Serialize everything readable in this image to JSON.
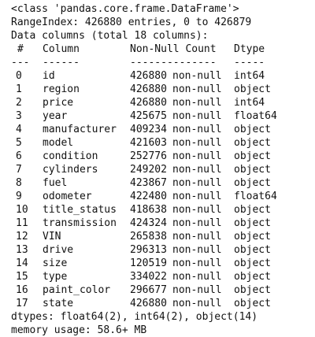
{
  "info": {
    "class_line": "<class 'pandas.core.frame.DataFrame'>",
    "range_index": "RangeIndex: 426880 entries, 0 to 426879",
    "data_columns": "Data columns (total 18 columns):",
    "header": {
      "idx": "#",
      "column": "Column",
      "count": "Non-Null Count",
      "dtype": "Dtype"
    },
    "separator": {
      "idx": "---",
      "column": "------",
      "count": "--------------",
      "dtype": "-----"
    },
    "rows": [
      {
        "idx": "0",
        "column": "id",
        "count": "426880",
        "nonnull": "non-null",
        "dtype": "int64"
      },
      {
        "idx": "1",
        "column": "region",
        "count": "426880",
        "nonnull": "non-null",
        "dtype": "object"
      },
      {
        "idx": "2",
        "column": "price",
        "count": "426880",
        "nonnull": "non-null",
        "dtype": "int64"
      },
      {
        "idx": "3",
        "column": "year",
        "count": "425675",
        "nonnull": "non-null",
        "dtype": "float64"
      },
      {
        "idx": "4",
        "column": "manufacturer",
        "count": "409234",
        "nonnull": "non-null",
        "dtype": "object"
      },
      {
        "idx": "5",
        "column": "model",
        "count": "421603",
        "nonnull": "non-null",
        "dtype": "object"
      },
      {
        "idx": "6",
        "column": "condition",
        "count": "252776",
        "nonnull": "non-null",
        "dtype": "object"
      },
      {
        "idx": "7",
        "column": "cylinders",
        "count": "249202",
        "nonnull": "non-null",
        "dtype": "object"
      },
      {
        "idx": "8",
        "column": "fuel",
        "count": "423867",
        "nonnull": "non-null",
        "dtype": "object"
      },
      {
        "idx": "9",
        "column": "odometer",
        "count": "422480",
        "nonnull": "non-null",
        "dtype": "float64"
      },
      {
        "idx": "10",
        "column": "title_status",
        "count": "418638",
        "nonnull": "non-null",
        "dtype": "object"
      },
      {
        "idx": "11",
        "column": "transmission",
        "count": "424324",
        "nonnull": "non-null",
        "dtype": "object"
      },
      {
        "idx": "12",
        "column": "VIN",
        "count": "265838",
        "nonnull": "non-null",
        "dtype": "object"
      },
      {
        "idx": "13",
        "column": "drive",
        "count": "296313",
        "nonnull": "non-null",
        "dtype": "object"
      },
      {
        "idx": "14",
        "column": "size",
        "count": "120519",
        "nonnull": "non-null",
        "dtype": "object"
      },
      {
        "idx": "15",
        "column": "type",
        "count": "334022",
        "nonnull": "non-null",
        "dtype": "object"
      },
      {
        "idx": "16",
        "column": "paint_color",
        "count": "296677",
        "nonnull": "non-null",
        "dtype": "object"
      },
      {
        "idx": "17",
        "column": "state",
        "count": "426880",
        "nonnull": "non-null",
        "dtype": "object"
      }
    ],
    "dtypes": "dtypes: float64(2), int64(2), object(14)",
    "memory": "memory usage: 58.6+ MB"
  }
}
